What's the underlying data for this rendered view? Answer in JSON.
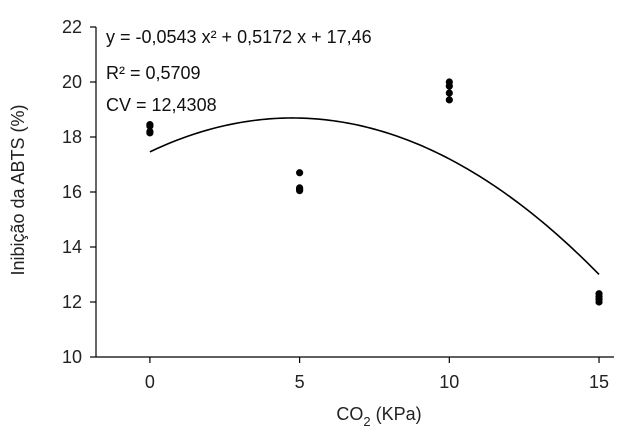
{
  "chart_data": {
    "type": "scatter",
    "x": [
      0,
      0,
      0,
      0,
      5,
      5,
      5,
      5,
      10,
      10,
      10,
      10,
      15,
      15,
      15,
      15
    ],
    "y": [
      18.45,
      18.4,
      18.2,
      18.15,
      16.7,
      16.15,
      16.1,
      16.05,
      20.0,
      19.85,
      19.6,
      19.35,
      12.3,
      12.2,
      12.1,
      12.0
    ],
    "fit": {
      "type": "quadratic",
      "a": -0.0543,
      "b": 0.5172,
      "c": 17.46
    },
    "annotations": [
      {
        "key": "eq",
        "text": "y = -0,0543 x² + 0,5172 x + 17,46"
      },
      {
        "key": "r2",
        "text": "R² = 0,5709"
      },
      {
        "key": "cv",
        "text": "CV = 12,4308"
      }
    ],
    "title": "",
    "xlabel_main": "CO",
    "xlabel_sub": "2",
    "xlabel_rest": " (KPa)",
    "ylabel": "Inibição da ABTS (%)",
    "xlim": [
      -1.8,
      15.5
    ],
    "ylim": [
      10,
      22
    ],
    "xticks": [
      0,
      5,
      10,
      15
    ],
    "xtick_labels": [
      "0",
      "5",
      "10",
      "15"
    ],
    "yticks": [
      10,
      12,
      14,
      16,
      18,
      20,
      22
    ],
    "ytick_labels": [
      "10",
      "12",
      "14",
      "16",
      "18",
      "20",
      "22"
    ],
    "grid": false,
    "legend": "none",
    "point_color": "#000000",
    "line_color": "#000000"
  }
}
